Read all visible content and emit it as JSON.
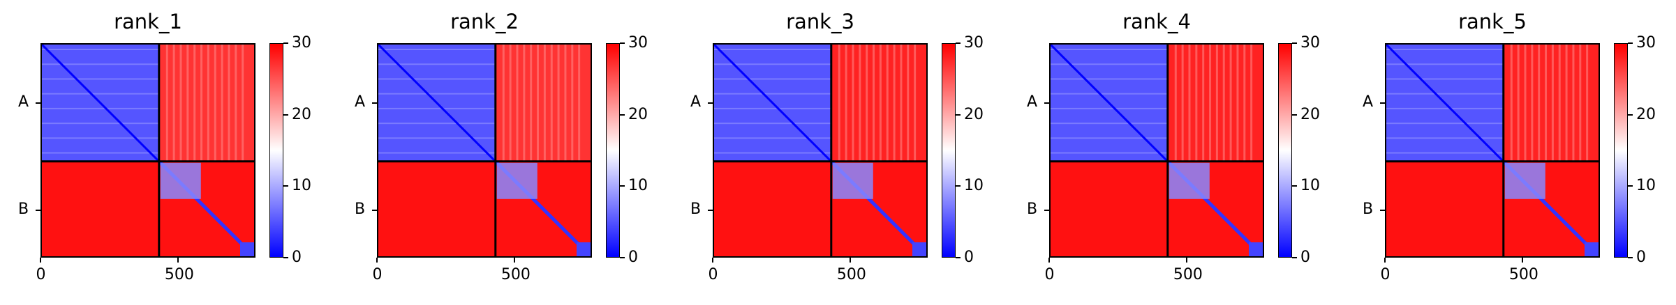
{
  "chart_data": [
    {
      "type": "heatmap",
      "title": "rank_1",
      "xticks": [
        0,
        500
      ],
      "yticks": [
        "A",
        "B"
      ],
      "xlim": [
        0,
        780
      ],
      "ylim": [
        780,
        0
      ],
      "chain_boundary": 430,
      "colorbar": {
        "ticks": [
          0,
          10,
          20,
          30
        ],
        "range": [
          0,
          30
        ],
        "colors": [
          "#0000ff",
          "#ffffff",
          "#ff0000"
        ]
      },
      "blocks": {
        "A_A": 5,
        "A_B": 27,
        "B_A": 29,
        "B_B": 29,
        "B_B_diagonal": 3
      }
    },
    {
      "type": "heatmap",
      "title": "rank_2",
      "xticks": [
        0,
        500
      ],
      "yticks": [
        "A",
        "B"
      ],
      "xlim": [
        0,
        780
      ],
      "ylim": [
        780,
        0
      ],
      "chain_boundary": 430,
      "colorbar": {
        "ticks": [
          0,
          10,
          20,
          30
        ],
        "range": [
          0,
          30
        ],
        "colors": [
          "#0000ff",
          "#ffffff",
          "#ff0000"
        ]
      },
      "blocks": {
        "A_A": 5,
        "A_B": 27,
        "B_A": 29,
        "B_B": 29,
        "B_B_diagonal": 3
      }
    },
    {
      "type": "heatmap",
      "title": "rank_3",
      "xticks": [
        0,
        500
      ],
      "yticks": [
        "A",
        "B"
      ],
      "xlim": [
        0,
        780
      ],
      "ylim": [
        780,
        0
      ],
      "chain_boundary": 430,
      "colorbar": {
        "ticks": [
          0,
          10,
          20,
          30
        ],
        "range": [
          0,
          30
        ],
        "colors": [
          "#0000ff",
          "#ffffff",
          "#ff0000"
        ]
      },
      "blocks": {
        "A_A": 5,
        "A_B": 28,
        "B_A": 29,
        "B_B": 29,
        "B_B_diagonal": 3
      }
    },
    {
      "type": "heatmap",
      "title": "rank_4",
      "xticks": [
        0,
        500
      ],
      "yticks": [
        "A",
        "B"
      ],
      "xlim": [
        0,
        780
      ],
      "ylim": [
        780,
        0
      ],
      "chain_boundary": 430,
      "colorbar": {
        "ticks": [
          0,
          10,
          20,
          30
        ],
        "range": [
          0,
          30
        ],
        "colors": [
          "#0000ff",
          "#ffffff",
          "#ff0000"
        ]
      },
      "blocks": {
        "A_A": 5,
        "A_B": 28,
        "B_A": 29,
        "B_B": 29,
        "B_B_diagonal": 3
      }
    },
    {
      "type": "heatmap",
      "title": "rank_5",
      "xticks": [
        0,
        500
      ],
      "yticks": [
        "A",
        "B"
      ],
      "xlim": [
        0,
        780
      ],
      "ylim": [
        780,
        0
      ],
      "chain_boundary": 430,
      "colorbar": {
        "ticks": [
          0,
          10,
          20,
          30
        ],
        "range": [
          0,
          30
        ],
        "colors": [
          "#0000ff",
          "#ffffff",
          "#ff0000"
        ]
      },
      "blocks": {
        "A_A": 5,
        "A_B": 28,
        "B_A": 29,
        "B_B": 29,
        "B_B_diagonal": 3
      }
    }
  ]
}
